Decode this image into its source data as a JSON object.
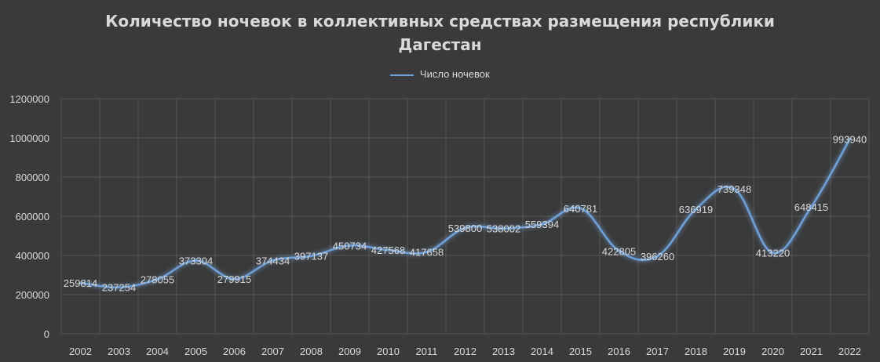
{
  "chart_data": {
    "type": "line",
    "title": [
      "Количество ночевок в коллективных средствах размещения республики",
      "Дагестан"
    ],
    "categories": [
      "2002",
      "2003",
      "2004",
      "2005",
      "2006",
      "2007",
      "2008",
      "2009",
      "2010",
      "2011",
      "2012",
      "2013",
      "2014",
      "2015",
      "2016",
      "2017",
      "2018",
      "2019",
      "2020",
      "2021",
      "2022"
    ],
    "series": [
      {
        "name": "Число ночевок",
        "values": [
          259814,
          237254,
          278055,
          373304,
          279915,
          374434,
          397137,
          450734,
          427568,
          417658,
          539800,
          538002,
          559394,
          640781,
          422805,
          396260,
          636919,
          739348,
          413220,
          648415,
          993940
        ]
      }
    ],
    "y_ticks": [
      "0",
      "200000",
      "400000",
      "600000",
      "800000",
      "1000000",
      "1200000"
    ],
    "ylim": [
      0,
      1200000
    ],
    "grid": true,
    "legend_position": "top",
    "colors": {
      "background": "#3a3a3a",
      "line": "#6fa0d8",
      "grid": "#555555",
      "text": "#d9d9d9"
    }
  }
}
